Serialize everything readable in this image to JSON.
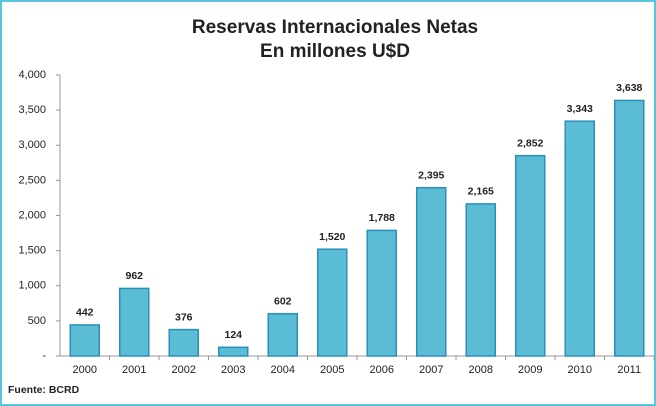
{
  "chart_data": {
    "type": "bar",
    "title": "Reservas Internacionales Netas",
    "subtitle": "En millones U$D",
    "categories": [
      "2000",
      "2001",
      "2002",
      "2003",
      "2004",
      "2005",
      "2006",
      "2007",
      "2008",
      "2009",
      "2010",
      "2011"
    ],
    "values": [
      442,
      962,
      376,
      124,
      602,
      1520,
      1788,
      2395,
      2165,
      2852,
      3343,
      3638
    ],
    "value_labels": [
      "442",
      "962",
      "376",
      "124",
      "602",
      "1,520",
      "1,788",
      "2,395",
      "2,165",
      "2,852",
      "3,343",
      "3,638"
    ],
    "color": "#5bbcd6",
    "ylim": [
      0,
      4000
    ],
    "yticks": [
      {
        "value": 0,
        "label": "-"
      },
      500,
      {
        "value": 1000,
        "label": "1,000"
      },
      {
        "value": 1500,
        "label": "1,500"
      },
      {
        "value": 2000,
        "label": "2,000"
      },
      {
        "value": 2500,
        "label": "2,500"
      },
      {
        "value": 3000,
        "label": "3,000"
      },
      {
        "value": 3500,
        "label": "3,500"
      },
      {
        "value": 4000,
        "label": "4,000"
      }
    ],
    "grid": false,
    "source": "Fuente: BCRD"
  }
}
